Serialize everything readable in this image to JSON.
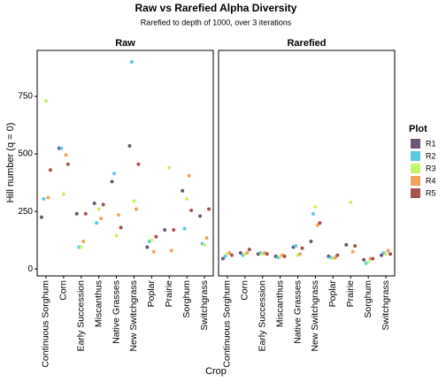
{
  "title": "Raw vs Rarefied Alpha Diversity",
  "subtitle": "Rarefied to depth of 1000, over 3 iterations",
  "x_label": "Crop",
  "y_label": "Hill number (q = 0)",
  "legend_title": "Plot",
  "chart_data": [
    {
      "type": "scatter",
      "title": "Raw",
      "categories": [
        "Continuous Sorghum",
        "Corn",
        "Early Succession",
        "Miscanthus",
        "Native Grasses",
        "New Switchgrass",
        "Poplar",
        "Prairie",
        "Sorghum",
        "Switchgrass"
      ],
      "ylim": [
        -30,
        950
      ],
      "yticks": [
        0,
        250,
        500,
        750
      ],
      "series": [
        {
          "name": "R1",
          "color": "#6b5876",
          "values": [
            225,
            525,
            240,
            285,
            380,
            535,
            95,
            170,
            340,
            230
          ]
        },
        {
          "name": "R2",
          "color": "#5bc8e8",
          "values": [
            305,
            525,
            95,
            200,
            415,
            900,
            120,
            null,
            175,
            110
          ]
        },
        {
          "name": "R3",
          "color": "#c5f56a",
          "values": [
            730,
            325,
            95,
            260,
            145,
            295,
            125,
            440,
            305,
            105
          ]
        },
        {
          "name": "R4",
          "color": "#f4a25b",
          "values": [
            310,
            495,
            120,
            220,
            235,
            260,
            75,
            80,
            405,
            135
          ]
        },
        {
          "name": "R5",
          "color": "#a5524e",
          "values": [
            430,
            455,
            240,
            280,
            180,
            455,
            140,
            170,
            255,
            260
          ]
        }
      ]
    },
    {
      "type": "scatter",
      "title": "Rarefied",
      "categories": [
        "Continuous Sorghum",
        "Corn",
        "Early Succession",
        "Miscanthus",
        "Native Grasses",
        "New Switchgrass",
        "Poplar",
        "Prairie",
        "Sorghum",
        "Switchgrass"
      ],
      "ylim": [
        -30,
        950
      ],
      "series": [
        {
          "color": "#6b5876",
          "values": [
            45,
            70,
            65,
            55,
            95,
            120,
            55,
            105,
            40,
            60
          ]
        },
        {
          "color": "#5bc8e8",
          "values": [
            55,
            60,
            70,
            50,
            100,
            240,
            50,
            null,
            25,
            70
          ]
        },
        {
          "color": "#c5f56a",
          "values": [
            65,
            65,
            65,
            55,
            60,
            270,
            45,
            290,
            30,
            65
          ]
        },
        {
          "color": "#f4a25b",
          "values": [
            70,
            70,
            70,
            60,
            65,
            190,
            50,
            75,
            45,
            80
          ]
        },
        {
          "color": "#a5524e",
          "values": [
            60,
            85,
            65,
            55,
            90,
            200,
            60,
            100,
            45,
            65
          ]
        }
      ]
    }
  ]
}
